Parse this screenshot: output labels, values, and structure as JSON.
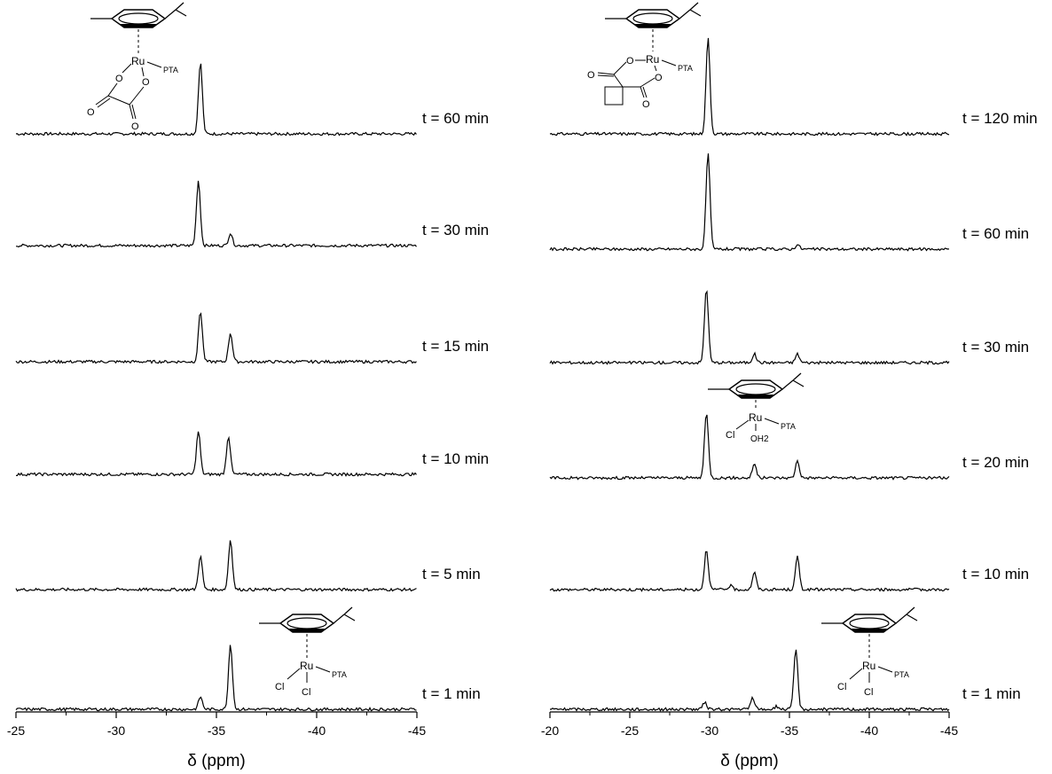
{
  "chart_data": [
    {
      "type": "line",
      "panel": "left",
      "xlabel": "δ (ppm)",
      "xlim": [
        -25,
        -45
      ],
      "x_ticks": [
        "-25",
        "-30",
        "-35",
        "-40",
        "-45"
      ],
      "series": [
        {
          "name": "t = 60 min",
          "peaks": [
            {
              "x": -34.2,
              "y": 0.75
            }
          ]
        },
        {
          "name": "t = 30 min",
          "peaks": [
            {
              "x": -34.1,
              "y": 0.68
            },
            {
              "x": -35.7,
              "y": 0.13
            }
          ]
        },
        {
          "name": "t = 15 min",
          "peaks": [
            {
              "x": -34.2,
              "y": 0.53
            },
            {
              "x": -35.7,
              "y": 0.3
            }
          ]
        },
        {
          "name": "t = 10 min",
          "peaks": [
            {
              "x": -34.1,
              "y": 0.45
            },
            {
              "x": -35.6,
              "y": 0.4
            }
          ]
        },
        {
          "name": "t = 5 min",
          "peaks": [
            {
              "x": -34.2,
              "y": 0.35
            },
            {
              "x": -35.7,
              "y": 0.52
            }
          ]
        },
        {
          "name": "t = 1 min",
          "peaks": [
            {
              "x": -34.2,
              "y": 0.13
            },
            {
              "x": -35.7,
              "y": 0.68
            }
          ]
        }
      ],
      "structure_labels": {
        "top": {
          "metal": "Ru",
          "ligand": "PTA"
        },
        "bottom": {
          "metal": "Ru",
          "ligand": "PTA",
          "cl1": "Cl",
          "cl2": "Cl"
        }
      }
    },
    {
      "type": "line",
      "panel": "right",
      "xlabel": "δ (ppm)",
      "xlim": [
        -20,
        -45
      ],
      "x_ticks": [
        "-20",
        "-25",
        "-30",
        "-35",
        "-40",
        "-45"
      ],
      "series": [
        {
          "name": "t = 120 min",
          "peaks": [
            {
              "x": -29.9,
              "y": 1.0
            }
          ]
        },
        {
          "name": "t = 60 min",
          "peaks": [
            {
              "x": -29.9,
              "y": 1.0
            },
            {
              "x": -35.5,
              "y": 0.05
            }
          ]
        },
        {
          "name": "t = 30 min",
          "peaks": [
            {
              "x": -29.8,
              "y": 0.78
            },
            {
              "x": -32.8,
              "y": 0.09
            },
            {
              "x": -35.5,
              "y": 0.09
            }
          ]
        },
        {
          "name": "t = 20 min",
          "peaks": [
            {
              "x": -29.8,
              "y": 0.68
            },
            {
              "x": -32.8,
              "y": 0.15
            },
            {
              "x": -35.5,
              "y": 0.18
            }
          ]
        },
        {
          "name": "t = 10 min",
          "peaks": [
            {
              "x": -29.8,
              "y": 0.42
            },
            {
              "x": -31.3,
              "y": 0.04
            },
            {
              "x": -32.8,
              "y": 0.18
            },
            {
              "x": -35.5,
              "y": 0.34
            }
          ]
        },
        {
          "name": "t = 1 min",
          "peaks": [
            {
              "x": -29.7,
              "y": 0.07
            },
            {
              "x": -32.7,
              "y": 0.12
            },
            {
              "x": -34.2,
              "y": 0.03
            },
            {
              "x": -35.4,
              "y": 0.63
            }
          ]
        }
      ],
      "structure_labels": {
        "top": {
          "metal": "Ru",
          "ligand": "PTA"
        },
        "middle": {
          "metal": "Ru",
          "ligand": "PTA",
          "cl": "Cl",
          "water": "OH2"
        },
        "bottom": {
          "metal": "Ru",
          "ligand": "PTA",
          "cl1": "Cl",
          "cl2": "Cl"
        }
      }
    }
  ]
}
